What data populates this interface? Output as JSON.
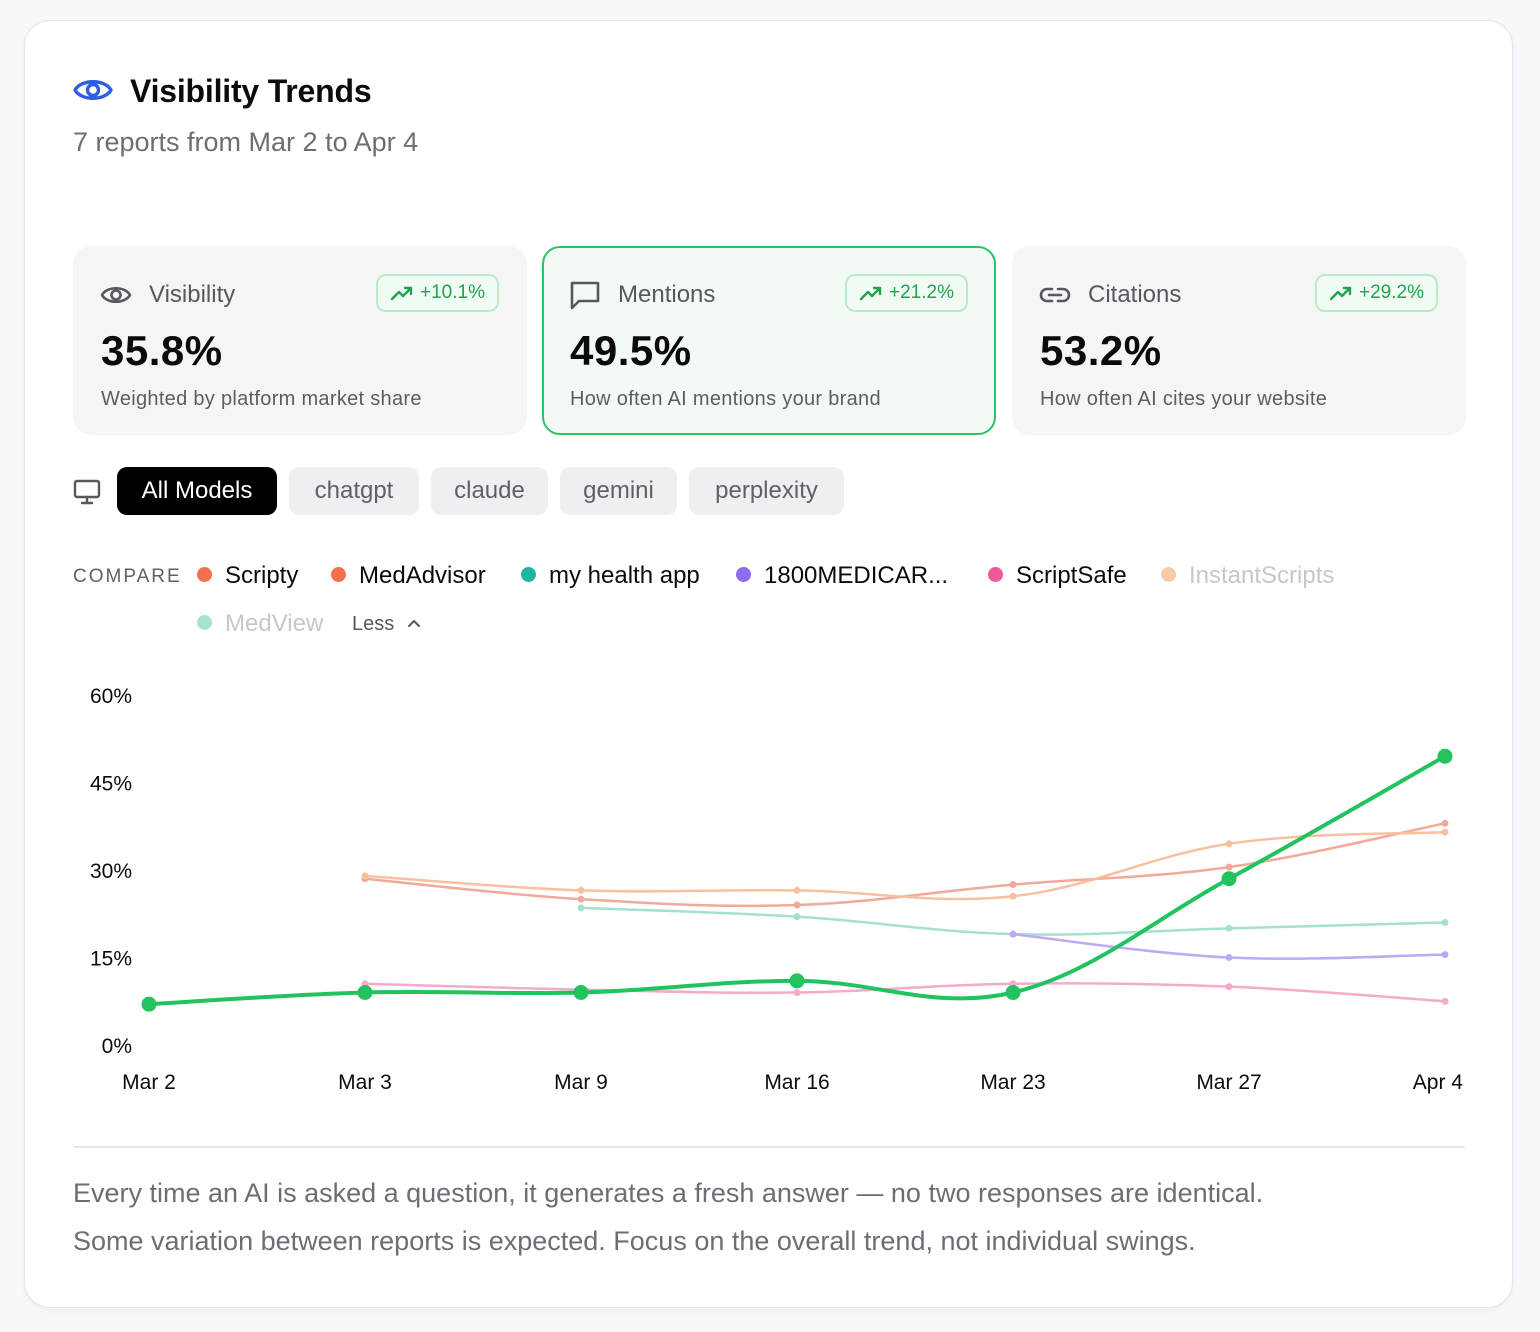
{
  "header": {
    "title": "Visibility Trends",
    "subtitle": "7 reports from Mar 2 to Apr 4",
    "icon": "eye-icon"
  },
  "metrics": [
    {
      "label": "Visibility",
      "icon": "eye-icon",
      "change": "+10.1%",
      "value": "35.8%",
      "description": "Weighted by platform market share",
      "active": false
    },
    {
      "label": "Mentions",
      "icon": "message-square-icon",
      "change": "+21.2%",
      "value": "49.5%",
      "description": "How often AI mentions your brand",
      "active": true
    },
    {
      "label": "Citations",
      "icon": "link-icon",
      "change": "+29.2%",
      "value": "53.2%",
      "description": "How often AI cites your website",
      "active": false
    }
  ],
  "model_filter": {
    "icon": "monitor-icon",
    "options": [
      "All Models",
      "chatgpt",
      "claude",
      "gemini",
      "perplexity"
    ],
    "selected": "All Models"
  },
  "compare": {
    "label": "COMPARE",
    "toggle_label": "Less",
    "competitors": [
      {
        "name": "Scripty",
        "color": "#f2714e",
        "enabled": true
      },
      {
        "name": "MedAdvisor",
        "color": "#f2714e",
        "enabled": true
      },
      {
        "name": "my health app",
        "color": "#1fb5a0",
        "enabled": true
      },
      {
        "name": "1800MEDICAR...",
        "color": "#8b6cf0",
        "enabled": true
      },
      {
        "name": "ScriptSafe",
        "color": "#ec5a9c",
        "enabled": true
      },
      {
        "name": "InstantScripts",
        "color": "#f8cba8",
        "enabled": false
      },
      {
        "name": "MedView",
        "color": "#a8e3d1",
        "enabled": false
      }
    ]
  },
  "chart_data": {
    "type": "line",
    "categories": [
      "Mar 2",
      "Mar 3",
      "Mar 9",
      "Mar 16",
      "Mar 23",
      "Mar 27",
      "Apr 4"
    ],
    "y_ticks": [
      "0%",
      "15%",
      "30%",
      "45%",
      "60%"
    ],
    "ylim": [
      0,
      60
    ],
    "series": [
      {
        "key": "brand",
        "color": "#22c35e",
        "values": [
          7,
          9,
          9,
          11,
          9,
          28.5,
          49.5
        ]
      },
      {
        "key": "Scripty",
        "color": "#f1a99a",
        "values": [
          null,
          28.5,
          25,
          24,
          27.5,
          30.5,
          38
        ]
      },
      {
        "key": "MedAdvisor",
        "color": "#f8c0a0",
        "values": [
          null,
          29,
          26.5,
          26.5,
          25.5,
          34.5,
          36.5
        ]
      },
      {
        "key": "my health app",
        "color": "#a5e0cc",
        "values": [
          null,
          null,
          23.5,
          22,
          19,
          20,
          21
        ]
      },
      {
        "key": "1800MEDICAR...",
        "color": "#bcaaf4",
        "values": [
          null,
          null,
          null,
          null,
          19,
          15,
          15.5
        ]
      },
      {
        "key": "ScriptSafe",
        "color": "#f4aacb",
        "values": [
          null,
          10.5,
          9.5,
          9,
          10.5,
          10,
          7.5
        ]
      }
    ]
  },
  "footer": {
    "line1": "Every time an AI is asked a question, it generates a fresh answer — no two responses are identical.",
    "line2": "Some variation between reports is expected. Focus on the overall trend, not individual swings."
  }
}
